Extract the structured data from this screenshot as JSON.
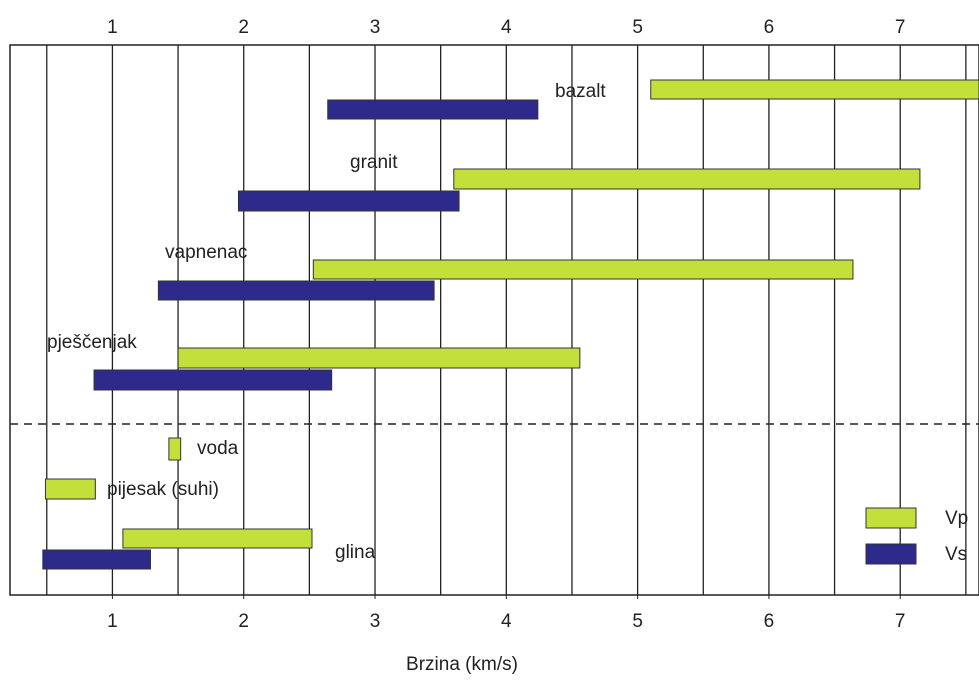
{
  "chart_data": {
    "type": "range-bar",
    "x_label": "Brzina (km/s)",
    "categories": [
      "bazalt",
      "granit",
      "vapnenac",
      "pješčenjak",
      "voda",
      "pijesak (suhi)",
      "glina"
    ],
    "series": [
      {
        "name": "Vp",
        "color": "#c3e03a",
        "values": [
          [
            5.1,
            7.6
          ],
          [
            3.6,
            7.15
          ],
          [
            2.53,
            6.64
          ],
          [
            1.5,
            4.56
          ],
          [
            1.43,
            1.52
          ],
          [
            0.49,
            0.87
          ],
          [
            1.08,
            2.52
          ]
        ]
      },
      {
        "name": "Vs",
        "color": "#2e2a8c",
        "values": [
          [
            2.64,
            4.24
          ],
          [
            1.96,
            3.64
          ],
          [
            1.35,
            3.45
          ],
          [
            0.86,
            2.67
          ],
          null,
          null,
          [
            0.47,
            1.29
          ]
        ]
      }
    ],
    "xlim": [
      0.22,
      7.6
    ],
    "xticks": [
      1,
      2,
      3,
      4,
      5,
      6,
      7
    ],
    "xgrid": [
      0.5,
      1,
      1.5,
      2,
      2.5,
      3,
      3.5,
      4,
      4.5,
      5,
      5.5,
      6,
      6.5,
      7,
      7.5
    ],
    "legend": "lower right"
  }
}
